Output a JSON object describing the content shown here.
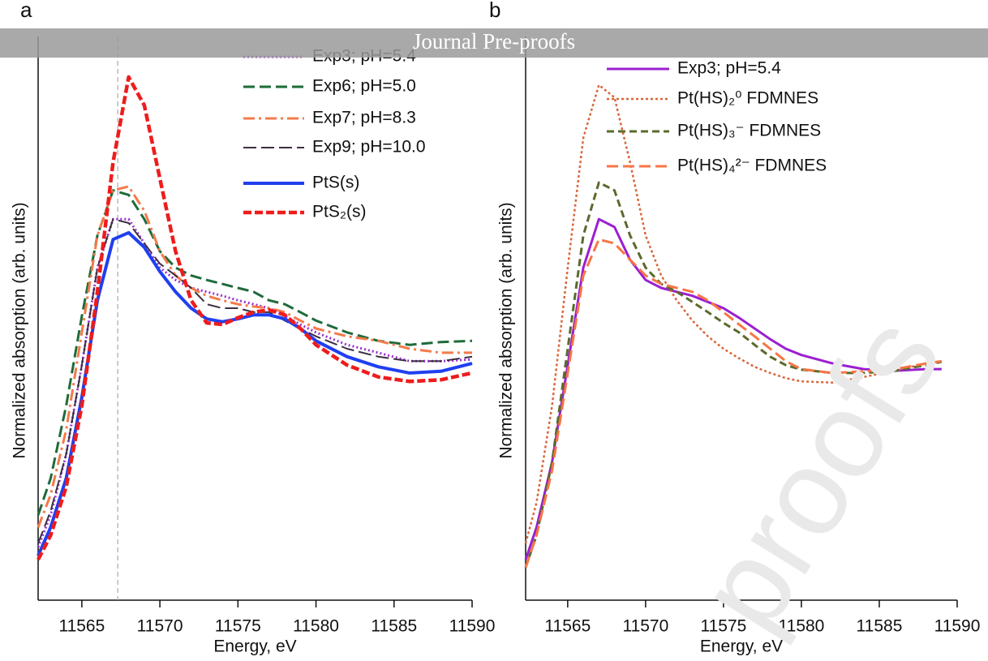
{
  "banner": "Journal Pre-proofs",
  "watermark": "proofs",
  "chart_data": [
    {
      "type": "line",
      "panel_label": "a",
      "xlabel": "Energy, eV",
      "ylabel": "Normalized absorption (arb. units)",
      "xlim": [
        11562.2,
        11590
      ],
      "xticks": [
        11565,
        11570,
        11575,
        11580,
        11585,
        11590
      ],
      "ylim": [
        0,
        100
      ],
      "vline": 11567.3,
      "x": [
        11562.2,
        11563,
        11564,
        11565,
        11566,
        11567,
        11568,
        11569,
        11570,
        11571,
        11572,
        11573,
        11574,
        11575,
        11576,
        11577,
        11578,
        11579,
        11580,
        11582,
        11584,
        11586,
        11588,
        11590
      ],
      "series": [
        {
          "name": "Exp3; pH=5.4",
          "color": "#9b2fcf",
          "dash": "2,3",
          "width": 3,
          "values": [
            9.4,
            15.1,
            25.9,
            41.7,
            59.0,
            67.6,
            67.6,
            63.3,
            59.0,
            56.8,
            55.4,
            54.7,
            54.0,
            53.2,
            52.5,
            51.8,
            50.4,
            48.9,
            47.5,
            45.3,
            43.9,
            42.4,
            42.4,
            42.7
          ]
        },
        {
          "name": "Exp6; pH=5.0",
          "color": "#1e6b3a",
          "dash": "14,6",
          "width": 3,
          "values": [
            15.1,
            21.6,
            34.5,
            50.4,
            64.7,
            72.7,
            71.9,
            67.6,
            61.9,
            59.0,
            57.6,
            56.8,
            56.1,
            55.4,
            54.7,
            53.2,
            52.5,
            51.1,
            49.6,
            47.5,
            46.0,
            45.3,
            45.8,
            46.0
          ]
        },
        {
          "name": "Exp7; pH=8.3",
          "color": "#f47a4a",
          "dash": "14,5,3,5",
          "width": 3,
          "values": [
            12.9,
            18.7,
            30.2,
            47.5,
            64.7,
            72.7,
            73.4,
            69.1,
            61.9,
            57.6,
            55.4,
            54.0,
            53.2,
            52.5,
            52.1,
            51.8,
            51.1,
            49.6,
            48.2,
            46.8,
            46.0,
            44.6,
            43.9,
            43.9
          ]
        },
        {
          "name": "Exp9; pH=10.0",
          "color": "#3b3040",
          "dash": "16,6",
          "width": 2,
          "values": [
            10.1,
            15.8,
            25.9,
            41.7,
            59.0,
            67.6,
            66.9,
            63.3,
            59.7,
            57.6,
            55.4,
            52.5,
            51.8,
            51.8,
            51.1,
            51.1,
            49.6,
            48.2,
            46.8,
            44.6,
            43.2,
            42.4,
            42.4,
            43.2
          ]
        },
        {
          "name": "PtS(s)",
          "color": "#1f3ff0",
          "dash": "none",
          "width": 4,
          "values": [
            7.9,
            12.9,
            21.6,
            36.0,
            53.2,
            64.0,
            65.2,
            62.6,
            58.3,
            54.7,
            51.8,
            49.9,
            49.4,
            49.9,
            50.6,
            50.6,
            49.9,
            48.2,
            46.0,
            43.2,
            41.4,
            40.3,
            40.6,
            42.0
          ]
        },
        {
          "name": "PtS₂(s)",
          "color": "#ee1c1c",
          "dash": "10,4",
          "width": 4.5,
          "values": [
            7.2,
            11.5,
            20.1,
            34.5,
            54.7,
            77.7,
            92.8,
            87.8,
            74.8,
            61.9,
            53.2,
            49.2,
            48.9,
            50.1,
            51.1,
            51.5,
            50.6,
            48.2,
            45.3,
            41.7,
            39.6,
            38.8,
            39.1,
            40.3
          ]
        }
      ]
    },
    {
      "type": "line",
      "panel_label": "b",
      "xlabel": "Energy, eV",
      "ylabel": "Normalized absorption (arb. units)",
      "xlim": [
        11562.3,
        11590
      ],
      "xticks": [
        11565,
        11570,
        11575,
        11580,
        11585,
        11590
      ],
      "ylim": [
        0,
        100
      ],
      "x": [
        11562.3,
        11563,
        11564,
        11565,
        11566,
        11567,
        11568,
        11569,
        11570,
        11571,
        11572,
        11573,
        11574,
        11575,
        11576,
        11577,
        11578,
        11579,
        11580,
        11582,
        11584,
        11586,
        11588,
        11589
      ],
      "series": [
        {
          "name": "Exp3; pH=5.4",
          "color": "#9b1fd0",
          "dash": "none",
          "width": 3,
          "values": [
            7.2,
            12.9,
            24.5,
            41.7,
            59.0,
            67.6,
            66.2,
            60.4,
            56.8,
            55.4,
            54.7,
            54.0,
            52.9,
            51.8,
            50.1,
            48.2,
            46.3,
            44.6,
            43.5,
            42.0,
            41.0,
            40.7,
            41.0,
            41.0
          ]
        },
        {
          "name": "Pt(HS)₂⁰ FDMNES",
          "color": "#d9663a",
          "dash": "3,3",
          "width": 2.5,
          "values": [
            10.1,
            17.3,
            34.5,
            59.0,
            82.0,
            91.4,
            89.2,
            77.7,
            64.7,
            57.6,
            53.2,
            49.6,
            46.8,
            44.6,
            42.9,
            41.4,
            40.3,
            39.4,
            38.8,
            38.6,
            39.6,
            40.7,
            42.0,
            42.4
          ]
        },
        {
          "name": "Pt(HS)₃⁻ FDMNES",
          "color": "#5a6a2c",
          "dash": "9,5",
          "width": 3,
          "values": [
            5.8,
            11.5,
            24.5,
            44.6,
            64.7,
            74.1,
            72.7,
            64.7,
            59.0,
            56.1,
            54.7,
            52.9,
            51.1,
            49.2,
            47.5,
            45.3,
            43.2,
            41.7,
            40.9,
            40.3,
            40.3,
            40.7,
            41.7,
            42.3
          ]
        },
        {
          "name": "Pt(HS)₄²⁻ FDMNES",
          "color": "#f77545",
          "dash": "14,6",
          "width": 3,
          "values": [
            5.8,
            11.5,
            23.0,
            40.3,
            57.6,
            64.0,
            63.3,
            60.4,
            57.6,
            56.1,
            55.4,
            54.7,
            53.2,
            51.1,
            48.9,
            46.8,
            44.6,
            42.4,
            41.0,
            40.3,
            40.6,
            41.0,
            42.0,
            42.4
          ]
        }
      ]
    }
  ]
}
